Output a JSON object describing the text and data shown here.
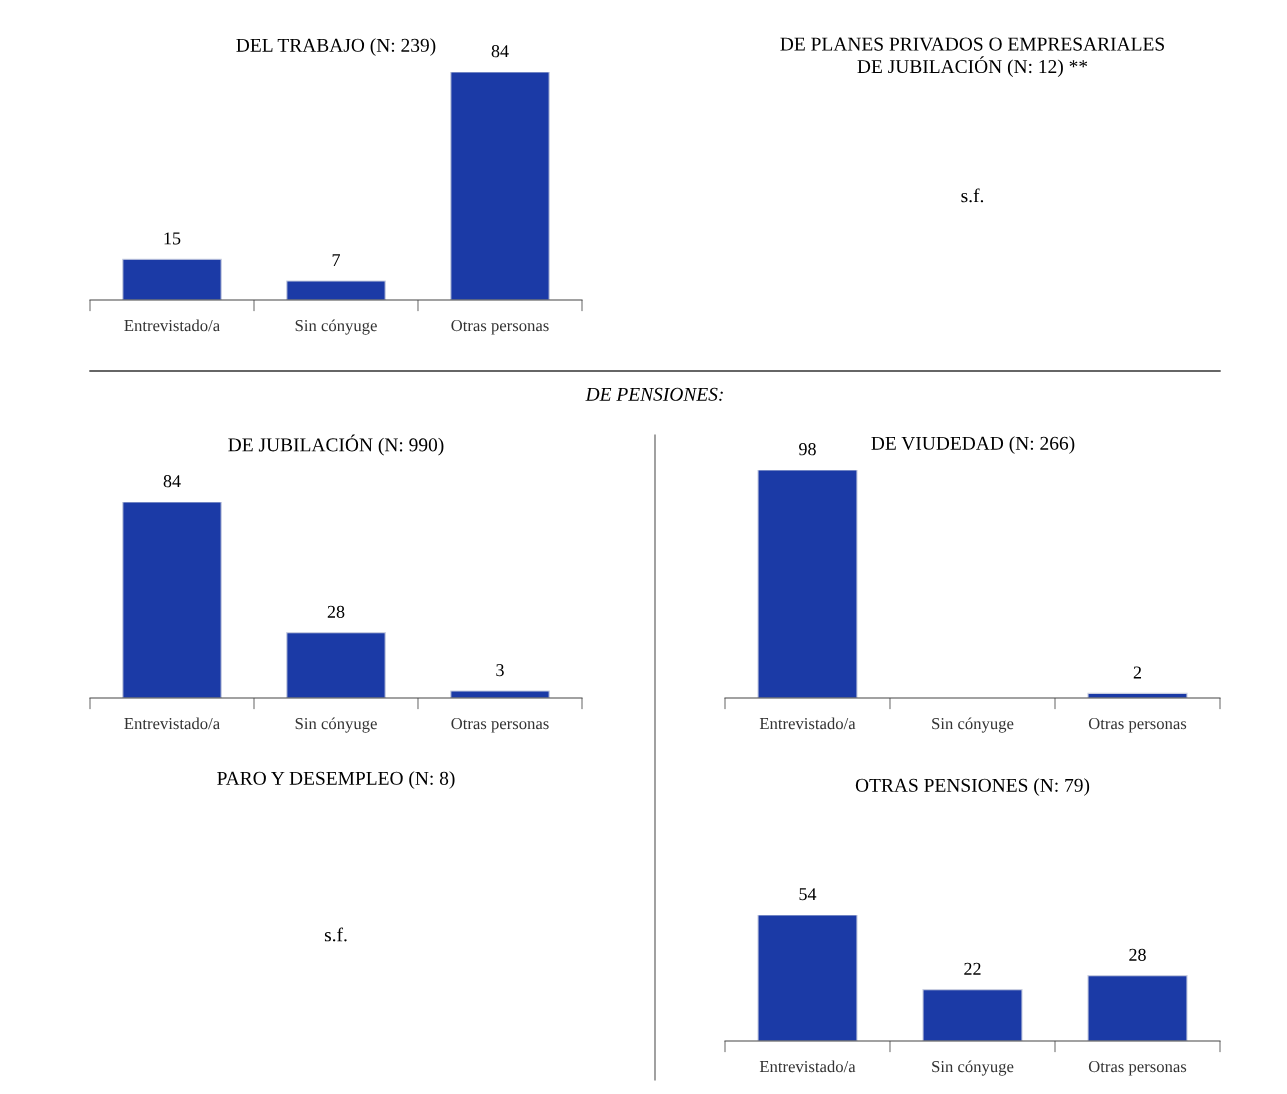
{
  "chart_data": [
    {
      "type": "bar",
      "title": "DEL TRABAJO (N: 239)",
      "categories": [
        "Entrevistado/a",
        "Sin cónyuge",
        "Otras personas"
      ],
      "values": [
        15,
        7,
        84
      ],
      "color": "#1b3aa6",
      "data_labels": true
    },
    {
      "type": "other",
      "title": "DE PLANES PRIVADOS O EMPRESARIALES\nDE JUBILACIÓN (N: 12) **",
      "annotations": [
        "s.f."
      ]
    },
    {
      "type": "bar",
      "title": "DE JUBILACIÓN (N: 990)",
      "categories": [
        "Entrevistado/a",
        "Sin cónyuge",
        "Otras personas"
      ],
      "values": [
        84,
        28,
        3
      ],
      "color": "#1b3aa6",
      "data_labels": true,
      "annotations": [
        "DE PENSIONES:"
      ]
    },
    {
      "type": "bar",
      "title": "DE VIUDEDAD (N: 266)",
      "categories": [
        "Entrevistado/a",
        "Sin cónyuge",
        "Otras personas"
      ],
      "values": [
        98,
        null,
        2
      ],
      "color": "#1b3aa6",
      "data_labels": true
    },
    {
      "type": "other",
      "title": "PARO Y DESEMPLEO (N: 8)",
      "annotations": [
        "s.f."
      ]
    },
    {
      "type": "bar",
      "title": "OTRAS PENSIONES (N: 79)",
      "categories": [
        "Entrevistado/a",
        "Sin cónyuge",
        "Otras personas"
      ],
      "values": [
        54,
        22,
        28
      ],
      "color": "#1b3aa6",
      "data_labels": true
    }
  ]
}
